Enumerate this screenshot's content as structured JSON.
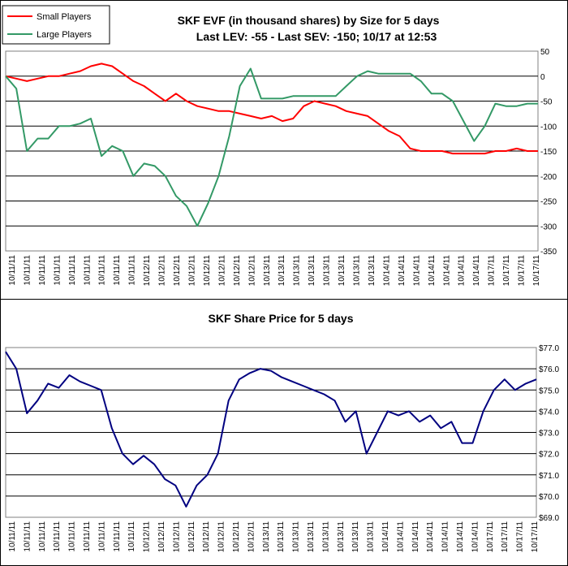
{
  "chart_data": [
    {
      "type": "line",
      "title": "SKF EVF (in thousand shares) by Size for 5 days",
      "subtitle": "Last LEV: -55 - Last SEV: -150; 10/17 at 12:53",
      "xlabel": "",
      "ylabel": "",
      "ylim": [
        -350,
        50
      ],
      "y_ticks": [
        50,
        0,
        -50,
        -100,
        -150,
        -200,
        -250,
        -300,
        -350
      ],
      "y_tick_labels": [
        "50",
        "0",
        "-50",
        "-100",
        "-150",
        "-200",
        "-250",
        "-300",
        "-350"
      ],
      "x_tick_labels": [
        "10/11/11",
        "10/11/11",
        "10/11/11",
        "10/11/11",
        "10/11/11",
        "10/11/11",
        "10/11/11",
        "10/11/11",
        "10/11/11",
        "10/12/11",
        "10/12/11",
        "10/12/11",
        "10/12/11",
        "10/12/11",
        "10/12/11",
        "10/12/11",
        "10/12/11",
        "10/13/11",
        "10/13/11",
        "10/13/11",
        "10/13/11",
        "10/13/11",
        "10/13/11",
        "10/13/11",
        "10/13/11",
        "10/14/11",
        "10/14/11",
        "10/14/11",
        "10/14/11",
        "10/14/11",
        "10/14/11",
        "10/14/11",
        "10/17/11",
        "10/17/11",
        "10/17/11",
        "10/17/11"
      ],
      "x": [
        0,
        2,
        4,
        6,
        8,
        10,
        12,
        14,
        16,
        18,
        20,
        22,
        24,
        26,
        28,
        30,
        32,
        34,
        36,
        38,
        40,
        42,
        44,
        46,
        48,
        50,
        52,
        54,
        56,
        58,
        60,
        62,
        64,
        66,
        68,
        70,
        72,
        74,
        76,
        78,
        80,
        82,
        84,
        86,
        88,
        90,
        92,
        94,
        96,
        98,
        100
      ],
      "grid": true,
      "legend": "top-left",
      "series": [
        {
          "name": "Small Players",
          "color": "#ff0000",
          "values": [
            0,
            -5,
            -10,
            -5,
            0,
            0,
            5,
            10,
            20,
            25,
            20,
            5,
            -10,
            -20,
            -35,
            -50,
            -35,
            -50,
            -60,
            -65,
            -70,
            -70,
            -75,
            -80,
            -85,
            -80,
            -90,
            -85,
            -60,
            -50,
            -55,
            -60,
            -70,
            -75,
            -80,
            -95,
            -110,
            -120,
            -145,
            -150,
            -150,
            -150,
            -155,
            -155,
            -155,
            -155,
            -150,
            -150,
            -145,
            -150,
            -150
          ]
        },
        {
          "name": "Large Players",
          "color": "#339966",
          "values": [
            0,
            -25,
            -150,
            -125,
            -125,
            -100,
            -100,
            -95,
            -85,
            -160,
            -140,
            -150,
            -200,
            -175,
            -180,
            -200,
            -240,
            -260,
            -300,
            -255,
            -200,
            -120,
            -20,
            15,
            -45,
            -45,
            -45,
            -40,
            -40,
            -40,
            -40,
            -40,
            -20,
            0,
            10,
            5,
            5,
            5,
            5,
            -10,
            -35,
            -35,
            -50,
            -90,
            -130,
            -100,
            -55,
            -60,
            -60,
            -55,
            -55
          ]
        }
      ]
    },
    {
      "type": "line",
      "title": "SKF Share Price for 5 days",
      "xlabel": "",
      "ylabel": "",
      "ylim": [
        69.0,
        77.0
      ],
      "y_ticks": [
        77,
        76,
        75,
        74,
        73,
        72,
        71,
        70,
        69
      ],
      "y_tick_labels": [
        "$77.0",
        "$76.0",
        "$75.0",
        "$74.0",
        "$73.0",
        "$72.0",
        "$71.0",
        "$70.0",
        "$69.0"
      ],
      "x_tick_labels": [
        "10/11/11",
        "10/11/11",
        "10/11/11",
        "10/11/11",
        "10/11/11",
        "10/11/11",
        "10/11/11",
        "10/11/11",
        "10/11/11",
        "10/12/11",
        "10/12/11",
        "10/12/11",
        "10/12/11",
        "10/12/11",
        "10/12/11",
        "10/12/11",
        "10/12/11",
        "10/13/11",
        "10/13/11",
        "10/13/11",
        "10/13/11",
        "10/13/11",
        "10/13/11",
        "10/13/11",
        "10/13/11",
        "10/14/11",
        "10/14/11",
        "10/14/11",
        "10/14/11",
        "10/14/11",
        "10/14/11",
        "10/14/11",
        "10/17/11",
        "10/17/11",
        "10/17/11",
        "10/17/11"
      ],
      "x": [
        0,
        2,
        4,
        6,
        8,
        10,
        12,
        14,
        16,
        18,
        20,
        22,
        24,
        26,
        28,
        30,
        32,
        34,
        36,
        38,
        40,
        42,
        44,
        46,
        48,
        50,
        52,
        54,
        56,
        58,
        60,
        62,
        64,
        66,
        68,
        70,
        72,
        74,
        76,
        78,
        80,
        82,
        84,
        86,
        88,
        90,
        92,
        94,
        96,
        98,
        100
      ],
      "grid": true,
      "series": [
        {
          "name": "SKF Share Price",
          "color": "#000080",
          "values": [
            76.8,
            76.0,
            73.9,
            74.5,
            75.3,
            75.1,
            75.7,
            75.4,
            75.2,
            75.0,
            73.2,
            72.0,
            71.5,
            71.9,
            71.5,
            70.8,
            70.5,
            69.5,
            70.5,
            71.0,
            72.0,
            74.5,
            75.5,
            75.8,
            76.0,
            75.9,
            75.6,
            75.4,
            75.2,
            75.0,
            74.8,
            74.5,
            73.5,
            74.0,
            72.0,
            73.0,
            74.0,
            73.8,
            74.0,
            73.5,
            73.8,
            73.2,
            73.5,
            72.5,
            72.5,
            74.0,
            75.0,
            75.5,
            75.0,
            75.3,
            75.5
          ]
        }
      ]
    }
  ]
}
